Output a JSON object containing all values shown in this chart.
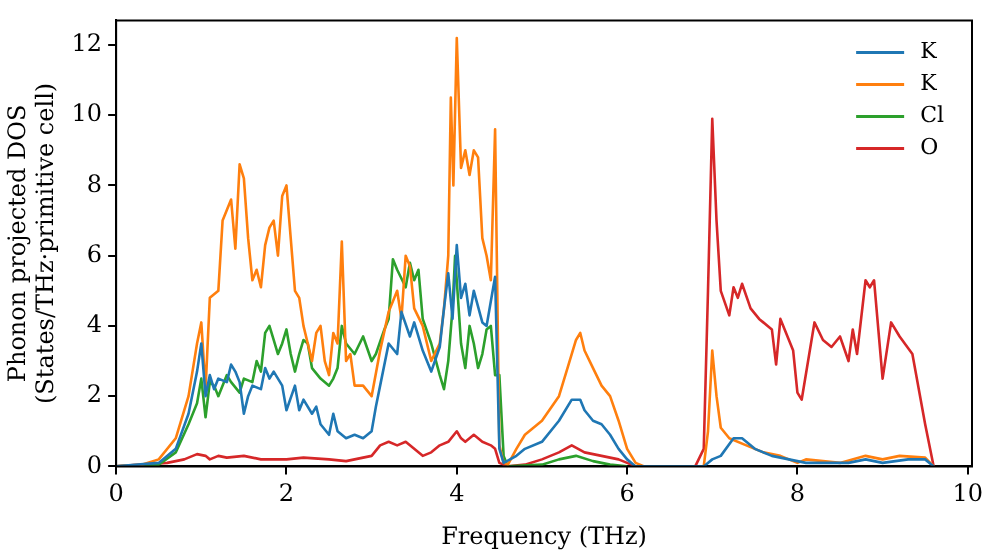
{
  "chart_data": {
    "type": "line",
    "xlabel": "Frequency (THz)",
    "ylabel": "Phonon projected DOS\n(States/THz·primitive cell)",
    "xlim": [
      0,
      10.05
    ],
    "xticks": [
      0,
      2,
      4,
      6,
      8,
      10
    ],
    "ylim": [
      0,
      12.7
    ],
    "yticks": [
      0,
      2,
      4,
      6,
      8,
      10,
      12
    ],
    "grid": false,
    "legend": "top right",
    "marker": "none",
    "line_style": "solid",
    "series": [
      {
        "name": "K",
        "color": "#1f77b4",
        "x": [
          0,
          0.5,
          0.7,
          0.85,
          0.95,
          1.0,
          1.05,
          1.1,
          1.15,
          1.2,
          1.3,
          1.35,
          1.4,
          1.45,
          1.5,
          1.55,
          1.6,
          1.7,
          1.75,
          1.8,
          1.85,
          1.95,
          2.0,
          2.1,
          2.15,
          2.2,
          2.3,
          2.35,
          2.4,
          2.5,
          2.55,
          2.6,
          2.7,
          2.8,
          2.9,
          3.0,
          3.05,
          3.1,
          3.2,
          3.3,
          3.35,
          3.45,
          3.5,
          3.6,
          3.7,
          3.8,
          3.85,
          3.9,
          3.95,
          4.0,
          4.05,
          4.1,
          4.15,
          4.2,
          4.3,
          4.35,
          4.4,
          4.45,
          4.5,
          4.55,
          4.7,
          4.8,
          5.0,
          5.2,
          5.35,
          5.45,
          5.5,
          5.6,
          5.7,
          5.8,
          5.9,
          6.0,
          6.1,
          6.9,
          7.0,
          7.1,
          7.25,
          7.35,
          7.5,
          7.7,
          7.9,
          8.1,
          8.6,
          8.8,
          9.0,
          9.3,
          9.5,
          9.6
        ],
        "values": [
          0,
          0.1,
          0.5,
          1.5,
          2.7,
          3.5,
          2,
          2.6,
          2.2,
          2.5,
          2.4,
          2.9,
          2.7,
          2.4,
          1.5,
          2,
          2.3,
          2.2,
          2.8,
          2.5,
          2.7,
          2.3,
          1.6,
          2.3,
          1.6,
          1.9,
          1.5,
          1.7,
          1.2,
          0.9,
          1.5,
          1,
          0.8,
          0.9,
          0.8,
          1.0,
          1.7,
          2.3,
          3.5,
          3.2,
          4.4,
          3.7,
          4.1,
          3.3,
          2.7,
          3.4,
          4.5,
          5.5,
          4.2,
          6.3,
          4.8,
          5.2,
          4.3,
          5,
          4.1,
          4,
          4.7,
          5.4,
          0.5,
          0.1,
          0.3,
          0.5,
          0.7,
          1.3,
          1.9,
          1.9,
          1.6,
          1.3,
          1.2,
          0.9,
          0.5,
          0.2,
          0,
          0,
          0.2,
          0.3,
          0.8,
          0.8,
          0.5,
          0.3,
          0.2,
          0.1,
          0.1,
          0.2,
          0.1,
          0.2,
          0.2,
          0
        ]
      },
      {
        "name": "K",
        "color": "#ff7f0e",
        "x": [
          0,
          0.3,
          0.5,
          0.7,
          0.85,
          0.95,
          1.0,
          1.05,
          1.1,
          1.2,
          1.25,
          1.3,
          1.35,
          1.4,
          1.45,
          1.5,
          1.55,
          1.6,
          1.65,
          1.7,
          1.75,
          1.8,
          1.85,
          1.9,
          1.95,
          2.0,
          2.05,
          2.1,
          2.15,
          2.2,
          2.25,
          2.3,
          2.35,
          2.4,
          2.45,
          2.5,
          2.55,
          2.6,
          2.65,
          2.7,
          2.75,
          2.8,
          2.9,
          3.0,
          3.1,
          3.2,
          3.3,
          3.35,
          3.4,
          3.45,
          3.5,
          3.6,
          3.7,
          3.8,
          3.85,
          3.9,
          3.93,
          3.96,
          4.0,
          4.05,
          4.1,
          4.15,
          4.2,
          4.25,
          4.3,
          4.35,
          4.4,
          4.45,
          4.5,
          4.55,
          4.6,
          4.7,
          4.8,
          5.0,
          5.2,
          5.3,
          5.4,
          5.45,
          5.5,
          5.6,
          5.7,
          5.8,
          5.9,
          6.0,
          6.1,
          6.2,
          6.9,
          6.95,
          7.0,
          7.05,
          7.1,
          7.2,
          7.4,
          7.6,
          7.8,
          8.0,
          8.1,
          8.5,
          8.8,
          9.0,
          9.2,
          9.5,
          9.6
        ],
        "values": [
          0,
          0.05,
          0.2,
          0.8,
          2,
          3.5,
          4.1,
          2.2,
          4.8,
          5,
          7,
          7.3,
          7.6,
          6.2,
          8.6,
          8.2,
          6.5,
          5.3,
          5.6,
          5.1,
          6.3,
          6.8,
          7,
          6,
          7.7,
          8,
          6.5,
          5,
          4.8,
          4,
          3.5,
          3,
          3.8,
          4,
          3,
          2.6,
          3.8,
          3.5,
          6.4,
          3,
          3.2,
          2.3,
          2.3,
          2,
          3.3,
          4.4,
          5,
          4.2,
          6,
          5.7,
          4.5,
          4,
          3,
          3.5,
          4.5,
          6,
          10.5,
          8,
          12.2,
          8.5,
          9,
          8.3,
          9,
          8.8,
          6.5,
          6,
          5.3,
          9.6,
          0.6,
          0.1,
          0.05,
          0.5,
          0.9,
          1.3,
          2,
          2.8,
          3.6,
          3.8,
          3.3,
          2.8,
          2.3,
          2,
          1.3,
          0.5,
          0.1,
          0,
          0,
          1,
          3.3,
          2,
          1.1,
          0.8,
          0.6,
          0.4,
          0.3,
          0.1,
          0.2,
          0.1,
          0.3,
          0.2,
          0.3,
          0.25,
          0
        ]
      },
      {
        "name": "Cl",
        "color": "#2ca02c",
        "x": [
          0,
          0.5,
          0.7,
          0.85,
          0.95,
          1.0,
          1.05,
          1.1,
          1.15,
          1.2,
          1.3,
          1.35,
          1.45,
          1.5,
          1.6,
          1.65,
          1.7,
          1.75,
          1.8,
          1.85,
          1.9,
          1.95,
          2.0,
          2.05,
          2.1,
          2.15,
          2.2,
          2.25,
          2.3,
          2.4,
          2.5,
          2.55,
          2.6,
          2.65,
          2.7,
          2.8,
          2.9,
          3.0,
          3.05,
          3.15,
          3.2,
          3.25,
          3.3,
          3.4,
          3.45,
          3.5,
          3.55,
          3.6,
          3.7,
          3.8,
          3.85,
          3.9,
          3.95,
          3.98,
          4.05,
          4.1,
          4.15,
          4.2,
          4.25,
          4.3,
          4.35,
          4.4,
          4.45,
          4.5,
          4.55,
          4.6,
          5.0,
          5.2,
          5.4,
          5.6,
          5.8,
          6.0
        ],
        "values": [
          0,
          0.05,
          0.4,
          1.2,
          1.8,
          2.5,
          1.4,
          2.4,
          2.3,
          2,
          2.6,
          2.4,
          2.1,
          2.5,
          2.4,
          3,
          2.7,
          3.8,
          4,
          3.6,
          3.2,
          3.5,
          3.9,
          3.2,
          2.7,
          3.2,
          3.6,
          3.5,
          2.8,
          2.5,
          2.3,
          2.5,
          2.8,
          4,
          3.5,
          3.2,
          3.7,
          3,
          3.2,
          3.9,
          4.2,
          5.9,
          5.6,
          5.1,
          5.8,
          5.3,
          5.6,
          4.2,
          3.5,
          2.6,
          2.2,
          3,
          4.5,
          6,
          3.5,
          2.8,
          4,
          3.5,
          2.8,
          3.2,
          3.9,
          4,
          2.6,
          2.6,
          0.3,
          0,
          0.05,
          0.2,
          0.3,
          0.15,
          0.05,
          0
        ]
      },
      {
        "name": "O",
        "color": "#d62728",
        "x": [
          0,
          0.6,
          0.8,
          0.95,
          1.05,
          1.1,
          1.2,
          1.3,
          1.5,
          1.7,
          2.0,
          2.2,
          2.5,
          2.7,
          3.0,
          3.1,
          3.2,
          3.3,
          3.4,
          3.5,
          3.6,
          3.7,
          3.8,
          3.9,
          4.0,
          4.05,
          4.1,
          4.2,
          4.3,
          4.4,
          4.45,
          4.5,
          4.6,
          4.8,
          5.0,
          5.2,
          5.35,
          5.5,
          5.7,
          5.9,
          6.0,
          6.1,
          6.8,
          6.9,
          6.95,
          7.0,
          7.05,
          7.1,
          7.2,
          7.25,
          7.3,
          7.35,
          7.45,
          7.55,
          7.7,
          7.75,
          7.8,
          7.95,
          8.0,
          8.05,
          8.2,
          8.3,
          8.4,
          8.5,
          8.6,
          8.65,
          8.7,
          8.8,
          8.85,
          8.9,
          9.0,
          9.1,
          9.2,
          9.35,
          9.5,
          9.6
        ],
        "values": [
          0,
          0.1,
          0.2,
          0.35,
          0.3,
          0.2,
          0.3,
          0.25,
          0.3,
          0.2,
          0.2,
          0.25,
          0.2,
          0.15,
          0.3,
          0.6,
          0.7,
          0.6,
          0.7,
          0.5,
          0.3,
          0.4,
          0.6,
          0.7,
          1.0,
          0.8,
          0.7,
          0.9,
          0.7,
          0.6,
          0.5,
          0.1,
          0,
          0.05,
          0.2,
          0.4,
          0.6,
          0.4,
          0.3,
          0.2,
          0.1,
          0,
          0,
          0.5,
          5,
          9.9,
          7,
          5,
          4.3,
          5.1,
          4.8,
          5.2,
          4.5,
          4.2,
          3.9,
          2.9,
          4.2,
          3.3,
          2.1,
          1.9,
          4.1,
          3.6,
          3.4,
          3.7,
          3,
          3.9,
          3.2,
          5.3,
          5.1,
          5.3,
          2.5,
          4.1,
          3.7,
          3.2,
          1.2,
          0
        ]
      }
    ]
  }
}
